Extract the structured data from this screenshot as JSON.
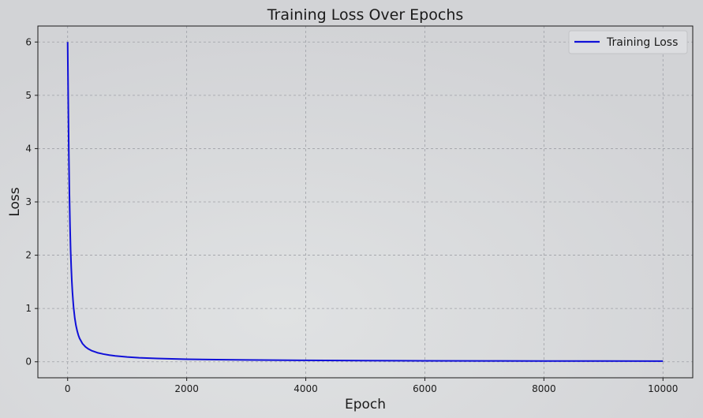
{
  "chart_data": {
    "type": "line",
    "title": "Training Loss Over Epochs",
    "xlabel": "Epoch",
    "ylabel": "Loss",
    "xlim": [
      -500,
      10500
    ],
    "ylim": [
      -0.3,
      6.3
    ],
    "xticks": [
      0,
      2000,
      4000,
      6000,
      8000,
      10000
    ],
    "yticks": [
      0,
      1,
      2,
      3,
      4,
      5,
      6
    ],
    "grid": true,
    "legend_position": "top-right",
    "series": [
      {
        "name": "Training Loss",
        "color": "#1010d8",
        "x": [
          0,
          10,
          20,
          30,
          40,
          50,
          60,
          70,
          80,
          90,
          100,
          120,
          140,
          160,
          180,
          200,
          250,
          300,
          350,
          400,
          500,
          600,
          700,
          800,
          1000,
          1200,
          1500,
          2000,
          2500,
          3000,
          4000,
          5000,
          6000,
          7000,
          8000,
          9000,
          10000
        ],
        "y": [
          6.0,
          4.9,
          3.9,
          3.15,
          2.55,
          2.1,
          1.78,
          1.52,
          1.32,
          1.16,
          1.02,
          0.82,
          0.68,
          0.58,
          0.5,
          0.44,
          0.34,
          0.28,
          0.24,
          0.21,
          0.17,
          0.145,
          0.125,
          0.11,
          0.09,
          0.075,
          0.062,
          0.048,
          0.04,
          0.034,
          0.027,
          0.022,
          0.019,
          0.017,
          0.015,
          0.014,
          0.013
        ]
      }
    ]
  }
}
